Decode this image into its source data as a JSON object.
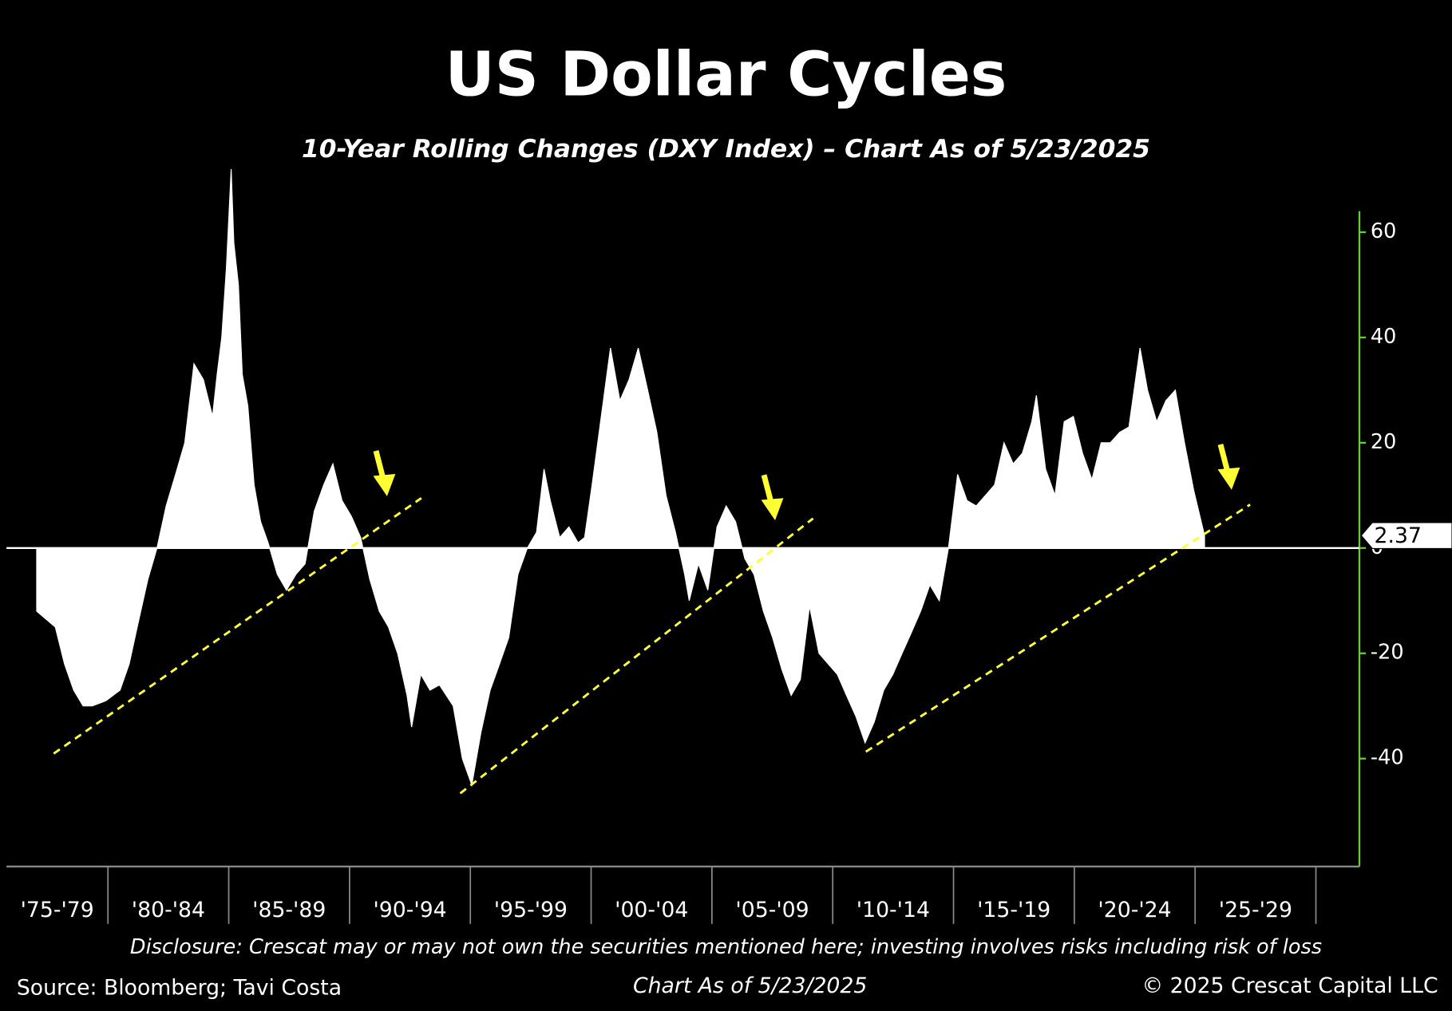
{
  "chart_data": {
    "type": "area",
    "title": "US Dollar Cycles",
    "subtitle": "10-Year Rolling Changes (DXY Index) – Chart As of 5/23/2025",
    "disclosure": "Disclosure: Crescat may or may not own the securities mentioned here; investing involves risks including risk of loss",
    "source": "Source: Bloomberg; Tavi Costa",
    "date_note": "Chart As of 5/23/2025",
    "copyright": "© 2025 Crescat Capital LLC",
    "color": "#ffffff",
    "axis_color": "#66cc33",
    "xlim": [
      1975.8,
      2031.8
    ],
    "ylim": [
      -60.5,
      64
    ],
    "xticks": [
      {
        "value": 1975,
        "label": "'75-'79"
      },
      {
        "value": 1980,
        "label": "'80-'84"
      },
      {
        "value": 1985,
        "label": "'85-'89"
      },
      {
        "value": 1990,
        "label": "'90-'94"
      },
      {
        "value": 1995,
        "label": "'95-'99"
      },
      {
        "value": 2000,
        "label": "'00-'04"
      },
      {
        "value": 2005,
        "label": "'05-'09"
      },
      {
        "value": 2010,
        "label": "'10-'14"
      },
      {
        "value": 2015,
        "label": "'15-'19"
      },
      {
        "value": 2020,
        "label": "'20-'24"
      },
      {
        "value": 2025,
        "label": "'25-'29"
      }
    ],
    "yticks": [
      60,
      40,
      20,
      0,
      -20,
      -40
    ],
    "x": [
      1977.05,
      1977.82,
      1978.2,
      1978.58,
      1978.97,
      1979.35,
      1979.92,
      1980.5,
      1980.88,
      1981.26,
      1981.65,
      1982.03,
      1982.41,
      1982.8,
      1983.18,
      1983.56,
      1983.95,
      1984.33,
      1984.52,
      1984.71,
      1984.9,
      1985.1,
      1985.21,
      1985.4,
      1985.56,
      1985.79,
      1986.05,
      1986.32,
      1986.63,
      1987.01,
      1987.39,
      1987.78,
      1988.16,
      1988.54,
      1988.93,
      1989.31,
      1989.69,
      1990.08,
      1990.46,
      1990.84,
      1991.23,
      1991.61,
      1991.99,
      1992.38,
      1992.57,
      1992.95,
      1993.33,
      1993.72,
      1994.29,
      1994.67,
      1995.06,
      1995.44,
      1995.82,
      1996.21,
      1996.59,
      1996.97,
      1997.36,
      1997.74,
      1998.05,
      1998.31,
      1998.7,
      1999.08,
      1999.46,
      1999.73,
      2000.04,
      2000.42,
      2000.8,
      2001.19,
      2001.57,
      2001.95,
      2002.34,
      2002.72,
      2003.1,
      2003.49,
      2003.87,
      2004.06,
      2004.44,
      2004.83,
      2005.21,
      2005.59,
      2005.98,
      2006.36,
      2006.74,
      2007.13,
      2007.51,
      2007.89,
      2008.28,
      2008.66,
      2009.04,
      2009.43,
      2009.81,
      2010.19,
      2010.57,
      2010.96,
      2011.34,
      2011.72,
      2012.11,
      2012.49,
      2012.87,
      2013.26,
      2013.64,
      2014.02,
      2014.41,
      2014.79,
      2015.17,
      2015.56,
      2015.94,
      2016.32,
      2016.7,
      2017.09,
      2017.47,
      2017.85,
      2018.24,
      2018.43,
      2018.81,
      2019.2,
      2019.58,
      2019.96,
      2020.34,
      2020.73,
      2021.11,
      2021.49,
      2021.88,
      2022.26,
      2022.72,
      2023.03,
      2023.41,
      2023.79,
      2024.18,
      2024.56,
      2024.94,
      2025.39
    ],
    "values": [
      -12,
      -15,
      -22,
      -27,
      -30,
      -30,
      -29,
      -27,
      -22,
      -14,
      -6,
      0,
      8,
      14,
      20,
      35,
      32,
      25,
      33,
      40,
      53,
      72,
      58,
      50,
      33,
      27,
      12,
      5,
      1,
      -5,
      -8,
      -5,
      -3,
      7,
      12,
      16,
      9,
      6,
      2,
      -6,
      -12,
      -15,
      -20,
      -28,
      -34,
      -24,
      -27,
      -26,
      -30,
      -40,
      -45,
      -35,
      -27,
      -22,
      -17,
      -5,
      0,
      3,
      15,
      9,
      2,
      4,
      1,
      2,
      12,
      25,
      38,
      28,
      32,
      38,
      30,
      22,
      10,
      3,
      -5,
      -10,
      -3,
      -8,
      4,
      8,
      5,
      -2,
      -5,
      -12,
      -17,
      -23,
      -28,
      -25,
      -11,
      -20,
      -22,
      -24,
      -28,
      -32,
      -37,
      -33,
      -27,
      -24,
      -20,
      -16,
      -12,
      -7,
      -10,
      0,
      14,
      9,
      8,
      10,
      12,
      20,
      16,
      18,
      24,
      29,
      15,
      10,
      24,
      25,
      18,
      13,
      20,
      20,
      22,
      23,
      38,
      30,
      24,
      28,
      30,
      20,
      11,
      2.37
    ]
  }
}
